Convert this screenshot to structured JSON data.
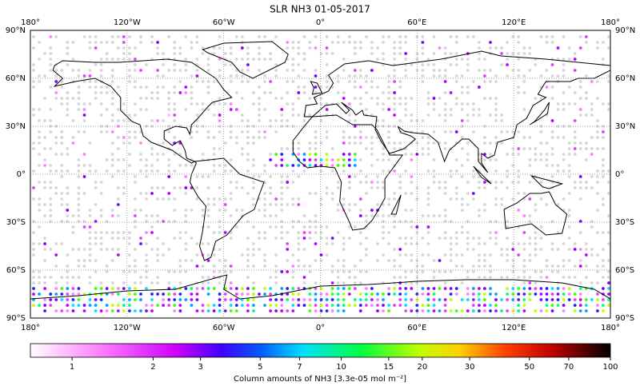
{
  "title": "SLR NH3 01-05-2017",
  "map": {
    "lon_ticks": [
      {
        "value": -180,
        "label": "180°"
      },
      {
        "value": -120,
        "label": "120°W"
      },
      {
        "value": -60,
        "label": "60°W"
      },
      {
        "value": 0,
        "label": "0°"
      },
      {
        "value": 60,
        "label": "60°E"
      },
      {
        "value": 120,
        "label": "120°E"
      },
      {
        "value": 180,
        "label": "180°"
      }
    ],
    "lat_ticks": [
      {
        "value": 90,
        "label": "90°N"
      },
      {
        "value": 60,
        "label": "60°N"
      },
      {
        "value": 30,
        "label": "30°N"
      },
      {
        "value": 0,
        "label": "0°"
      },
      {
        "value": -30,
        "label": "30°S"
      },
      {
        "value": -60,
        "label": "60°S"
      },
      {
        "value": -90,
        "label": "90°S"
      }
    ]
  },
  "colorbar": {
    "label": "Column amounts of NH3 [3.3e-05 mol m⁻²]",
    "lim": [
      0.7,
      100
    ],
    "log": true,
    "ticks": [
      1,
      2,
      3,
      5,
      7,
      10,
      15,
      20,
      30,
      50,
      70,
      100
    ]
  }
}
